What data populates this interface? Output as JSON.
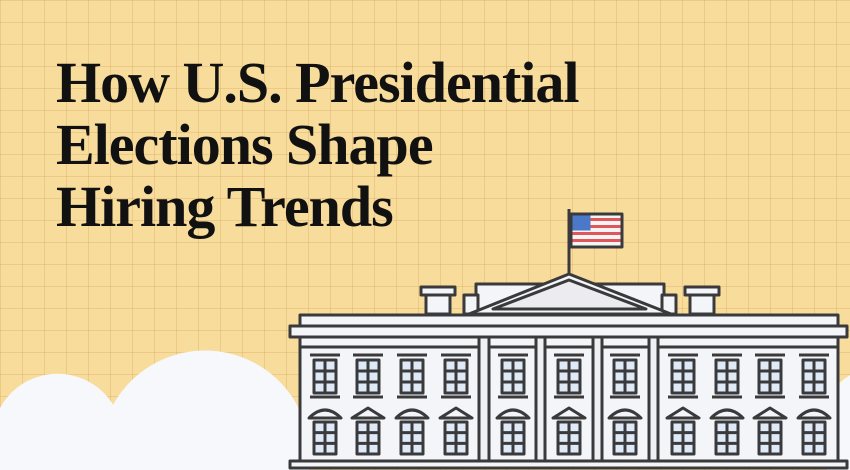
{
  "title": {
    "lines": [
      "How U.S. Presidential",
      "Elections Shape",
      "Hiring Trends"
    ]
  },
  "illustration": {
    "subject": "white-house-icon",
    "flag": "us-flag-icon",
    "colors": {
      "background": "#f8dc9c",
      "building": "#f3f5f8",
      "outline": "#3a3a3c",
      "window_glass": "#dfeaf6",
      "cloud": "#f6f8fb",
      "flag_red": "#e0575b",
      "flag_blue": "#4b78c8"
    }
  }
}
